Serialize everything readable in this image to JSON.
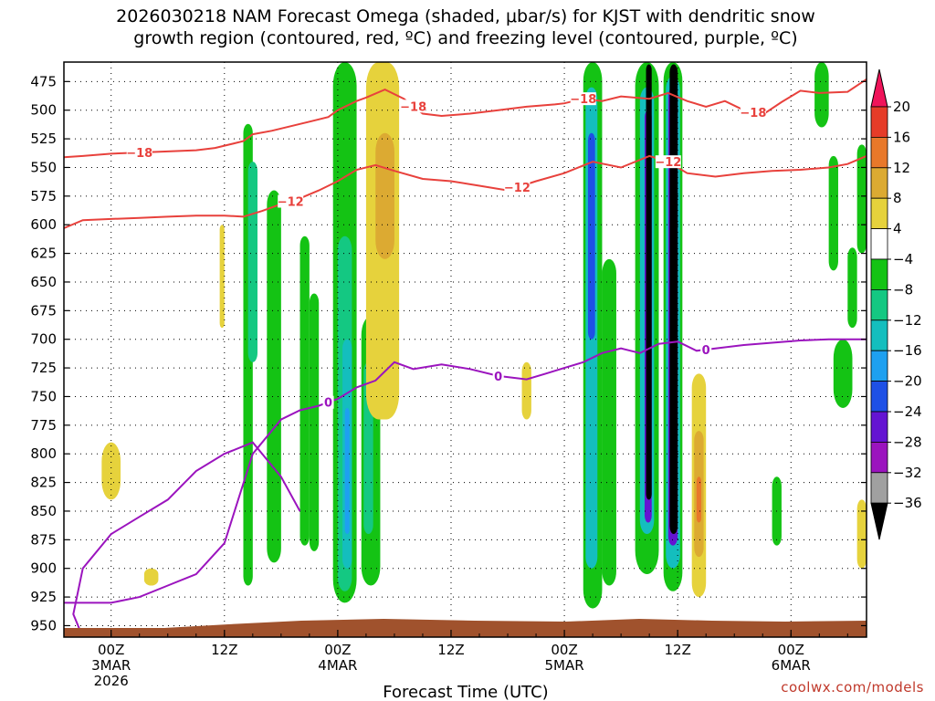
{
  "chart_data": {
    "type": "heatmap",
    "title": [
      "2026030218 NAM Forecast Omega (shaded, μbar/s) for KJST with dendritic snow",
      "growth region (contoured, red, ºC) and freezing level (contoured, purple, ºC)"
    ],
    "xlabel": "Forecast Time (UTC)",
    "credit": "coolwx.com/models",
    "xlim": [
      -10,
      160
    ],
    "y_ticks": [
      475,
      500,
      525,
      550,
      575,
      600,
      625,
      650,
      675,
      700,
      725,
      750,
      775,
      800,
      825,
      850,
      875,
      900,
      925,
      950
    ],
    "ylim": [
      458,
      960
    ],
    "x_ticks": [
      {
        "hour": 0,
        "lines": [
          "00Z",
          "3MAR",
          "2026"
        ]
      },
      {
        "hour": 24,
        "lines": [
          "12Z"
        ]
      },
      {
        "hour": 48,
        "lines": [
          "00Z",
          "4MAR"
        ]
      },
      {
        "hour": 72,
        "lines": [
          "12Z"
        ]
      },
      {
        "hour": 96,
        "lines": [
          "00Z",
          "5MAR"
        ]
      },
      {
        "hour": 120,
        "lines": [
          "12Z"
        ]
      },
      {
        "hour": 144,
        "lines": [
          "00Z",
          "6MAR"
        ]
      }
    ],
    "colorbar": {
      "labels": [
        "20",
        "16",
        "12",
        "8",
        "4",
        "−4",
        "−8",
        "−12",
        "−16",
        "−20",
        "−24",
        "−28",
        "−32",
        "−36"
      ],
      "colors": [
        "#f0145a",
        "#e63c28",
        "#e8782a",
        "#dcaa32",
        "#e6d23c",
        "#ffffff",
        "#14c314",
        "#14c882",
        "#14bebe",
        "#1ea0f0",
        "#1e50e6",
        "#6414d2",
        "#9b14be",
        "#a0a0a0",
        "#000000"
      ]
    },
    "terrain_color": "#a0522d",
    "omega_cells": [
      {
        "x": [
          28,
          30
        ],
        "y": [
          512,
          915
        ],
        "value": -6
      },
      {
        "x": [
          29,
          31
        ],
        "y": [
          545,
          720
        ],
        "value": -10
      },
      {
        "x": [
          33,
          36
        ],
        "y": [
          570,
          895
        ],
        "value": -6
      },
      {
        "x": [
          40,
          42
        ],
        "y": [
          610,
          880
        ],
        "value": -6
      },
      {
        "x": [
          42,
          44
        ],
        "y": [
          660,
          885
        ],
        "value": -6
      },
      {
        "x": [
          47,
          52
        ],
        "y": [
          458,
          930
        ],
        "value": -6
      },
      {
        "x": [
          48,
          51
        ],
        "y": [
          610,
          920
        ],
        "value": -10
      },
      {
        "x": [
          49,
          51
        ],
        "y": [
          700,
          900
        ],
        "value": -14
      },
      {
        "x": [
          49.5,
          50.5
        ],
        "y": [
          760,
          870
        ],
        "value": -18
      },
      {
        "x": [
          53,
          57
        ],
        "y": [
          680,
          915
        ],
        "value": -7
      },
      {
        "x": [
          53.5,
          55.5
        ],
        "y": [
          720,
          870
        ],
        "value": -11
      },
      {
        "x": [
          54,
          61
        ],
        "y": [
          458,
          770
        ],
        "value": 5
      },
      {
        "x": [
          56,
          60
        ],
        "y": [
          520,
          630
        ],
        "value": 9
      },
      {
        "x": [
          -2,
          2
        ],
        "y": [
          790,
          840
        ],
        "value": 5
      },
      {
        "x": [
          7,
          10
        ],
        "y": [
          900,
          915
        ],
        "value": 5
      },
      {
        "x": [
          100,
          104
        ],
        "y": [
          458,
          935
        ],
        "value": -7
      },
      {
        "x": [
          100.5,
          103
        ],
        "y": [
          480,
          900
        ],
        "value": -12
      },
      {
        "x": [
          101,
          102.5
        ],
        "y": [
          520,
          700
        ],
        "value": -22
      },
      {
        "x": [
          104,
          107
        ],
        "y": [
          630,
          915
        ],
        "value": -7
      },
      {
        "x": [
          111,
          116
        ],
        "y": [
          458,
          905
        ],
        "value": -7
      },
      {
        "x": [
          112,
          115
        ],
        "y": [
          480,
          870
        ],
        "value": -14
      },
      {
        "x": [
          113,
          114.5
        ],
        "y": [
          500,
          860
        ],
        "value": -26
      },
      {
        "x": [
          113.3,
          114.5
        ],
        "y": [
          460,
          840
        ],
        "value": -40
      },
      {
        "x": [
          117,
          121
        ],
        "y": [
          458,
          920
        ],
        "value": -7
      },
      {
        "x": [
          117.5,
          120.5
        ],
        "y": [
          470,
          900
        ],
        "value": -14
      },
      {
        "x": [
          118,
          120
        ],
        "y": [
          480,
          880
        ],
        "value": -26
      },
      {
        "x": [
          118.3,
          120
        ],
        "y": [
          460,
          870
        ],
        "value": -40
      },
      {
        "x": [
          123,
          126
        ],
        "y": [
          730,
          925
        ],
        "value": 5
      },
      {
        "x": [
          123.5,
          125.5
        ],
        "y": [
          780,
          890
        ],
        "value": 9
      },
      {
        "x": [
          124,
          125
        ],
        "y": [
          820,
          860
        ],
        "value": 14
      },
      {
        "x": [
          87,
          89
        ],
        "y": [
          720,
          770
        ],
        "value": 5
      },
      {
        "x": [
          140,
          142
        ],
        "y": [
          820,
          880
        ],
        "value": -6
      },
      {
        "x": [
          149,
          152
        ],
        "y": [
          458,
          515
        ],
        "value": -6
      },
      {
        "x": [
          152,
          154
        ],
        "y": [
          540,
          640
        ],
        "value": -6
      },
      {
        "x": [
          156,
          158
        ],
        "y": [
          620,
          690
        ],
        "value": -6
      },
      {
        "x": [
          153,
          157
        ],
        "y": [
          700,
          760
        ],
        "value": -6
      },
      {
        "x": [
          158,
          160
        ],
        "y": [
          530,
          625
        ],
        "value": -6
      },
      {
        "x": [
          158,
          160
        ],
        "y": [
          840,
          900
        ],
        "value": 5
      },
      {
        "x": [
          23,
          24
        ],
        "y": [
          600,
          690
        ],
        "value": 5
      }
    ],
    "series": [
      {
        "name": "-18",
        "color": "#e8413c",
        "x": [
          -10,
          -6,
          0,
          6,
          12,
          18,
          22,
          25,
          28,
          30,
          34,
          38,
          42,
          46,
          48,
          50,
          52,
          54,
          58,
          62,
          66,
          70,
          76,
          82,
          88,
          94,
          96,
          100,
          104,
          108,
          114,
          118,
          122,
          126,
          130,
          134,
          138,
          142,
          146,
          150,
          156,
          160
        ],
        "y": [
          541,
          540,
          538,
          537,
          536,
          535,
          533,
          530,
          527,
          521,
          518,
          514,
          510,
          506,
          500,
          496,
          492,
          489,
          482,
          490,
          503,
          505,
          503,
          500,
          497,
          495,
          494,
          490,
          492,
          488,
          490,
          485,
          492,
          497,
          492,
          500,
          504,
          493,
          483,
          485,
          484,
          473
        ],
        "labels": [
          {
            "x": 6,
            "text": "−18"
          },
          {
            "x": 64,
            "text": "−18"
          },
          {
            "x": 100,
            "text": "−18"
          },
          {
            "x": 136,
            "text": "−18"
          }
        ]
      },
      {
        "name": "-12",
        "color": "#e8413c",
        "x": [
          -10,
          -6,
          0,
          6,
          12,
          18,
          24,
          28,
          32,
          36,
          40,
          44,
          48,
          52,
          56,
          60,
          66,
          72,
          78,
          84,
          90,
          96,
          102,
          108,
          114,
          118,
          122,
          128,
          134,
          140,
          146,
          152,
          156,
          160
        ],
        "y": [
          603,
          596,
          595,
          594,
          593,
          592,
          592,
          593,
          588,
          582,
          577,
          570,
          562,
          552,
          548,
          553,
          560,
          562,
          566,
          570,
          562,
          555,
          545,
          550,
          540,
          545,
          555,
          558,
          555,
          553,
          552,
          550,
          547,
          540
        ],
        "labels": [
          {
            "x": 38,
            "text": "−12"
          },
          {
            "x": 86,
            "text": "−12"
          },
          {
            "x": 118,
            "text": "−12"
          }
        ]
      },
      {
        "name": "0",
        "color": "#9b14be",
        "x": [
          -10,
          0,
          6,
          12,
          18,
          24,
          30,
          36,
          40,
          44,
          48,
          52,
          56,
          60,
          64,
          70,
          76,
          82,
          88,
          92,
          96,
          100,
          104,
          108,
          112,
          116,
          120,
          124,
          128,
          134,
          140,
          146,
          152,
          156,
          160
        ],
        "y": [
          930,
          930,
          925,
          915,
          905,
          878,
          800,
          770,
          762,
          758,
          752,
          742,
          736,
          720,
          726,
          722,
          726,
          732,
          735,
          730,
          725,
          720,
          712,
          708,
          712,
          704,
          702,
          710,
          708,
          705,
          703,
          701,
          700,
          700,
          700
        ],
        "labels": [
          {
            "x": 46,
            "text": "0"
          },
          {
            "x": 82,
            "text": "0"
          },
          {
            "x": 126,
            "text": "0"
          }
        ]
      },
      {
        "name": "0-lower",
        "color": "#9b14be",
        "x": [
          -6,
          -8,
          -6,
          0,
          6,
          12,
          18,
          24,
          30,
          36,
          40
        ],
        "y": [
          960,
          940,
          900,
          870,
          855,
          840,
          815,
          800,
          790,
          820,
          850
        ],
        "labels": []
      }
    ]
  }
}
